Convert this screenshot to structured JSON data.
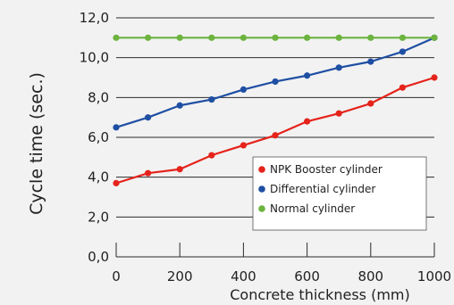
{
  "chart_data": {
    "type": "line",
    "title": "",
    "xlabel": "Concrete thickness (mm)",
    "ylabel": "Cycle time (sec.)",
    "xlim": [
      0,
      1000
    ],
    "ylim": [
      0,
      12
    ],
    "x_ticks": [
      0,
      200,
      400,
      600,
      800,
      1000
    ],
    "x_tick_labels": [
      "0",
      "200",
      "400",
      "600",
      "800",
      "1000"
    ],
    "y_ticks": [
      0,
      2,
      4,
      6,
      8,
      10,
      12
    ],
    "y_tick_labels": [
      "0,0",
      "2,0",
      "4,0",
      "6,0",
      "8,0",
      "10,0",
      "12,0"
    ],
    "grid": "horizontal",
    "legend_position": "bottom-right",
    "x": [
      0,
      100,
      200,
      300,
      400,
      500,
      600,
      700,
      800,
      900,
      1000
    ],
    "series": [
      {
        "name": "NPK Booster cylinder",
        "color": "#e5231b",
        "values": [
          3.7,
          4.2,
          4.4,
          5.1,
          5.6,
          6.1,
          6.8,
          7.2,
          7.7,
          8.5,
          9.0
        ]
      },
      {
        "name": "Differential cylinder",
        "color": "#1f4fa3",
        "values": [
          6.5,
          7.0,
          7.6,
          7.9,
          8.4,
          8.8,
          9.1,
          9.5,
          9.8,
          10.3,
          11.0
        ]
      },
      {
        "name": "Normal cylinder",
        "color": "#6cb33f",
        "values": [
          11.0,
          11.0,
          11.0,
          11.0,
          11.0,
          11.0,
          11.0,
          11.0,
          11.0,
          11.0,
          11.0
        ]
      }
    ]
  }
}
